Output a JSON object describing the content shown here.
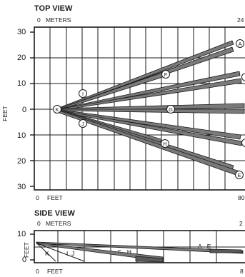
{
  "top_view": {
    "title": "TOP VIEW",
    "meters_origin": "0",
    "meters_label": "METERS",
    "meters_max_partial": "24",
    "feet_origin": "0",
    "feet_label": "FEET",
    "feet_max_partial": "80",
    "y_axis_label": "FEET",
    "y_ticks": [
      "30",
      "20",
      "10",
      "0",
      "10",
      "20",
      "30"
    ],
    "point_labels": {
      "A": "A",
      "E": "E",
      "F": "F",
      "G": "G",
      "H": "H",
      "I": "I",
      "J": "J",
      "K": "K"
    }
  },
  "side_view": {
    "title": "SIDE VIEW",
    "meters_origin": "0",
    "meters_label": "METERS",
    "meters_max_partial": "2",
    "feet_origin": "0",
    "feet_label": "FEET",
    "feet_max_partial": "8",
    "y_axis_label": "FEET",
    "y_ticks": [
      "10",
      "0"
    ],
    "group_labels": {
      "k": "K",
      "ij": "I, J",
      "fh": "F - H",
      "ae": "A - E"
    }
  }
}
